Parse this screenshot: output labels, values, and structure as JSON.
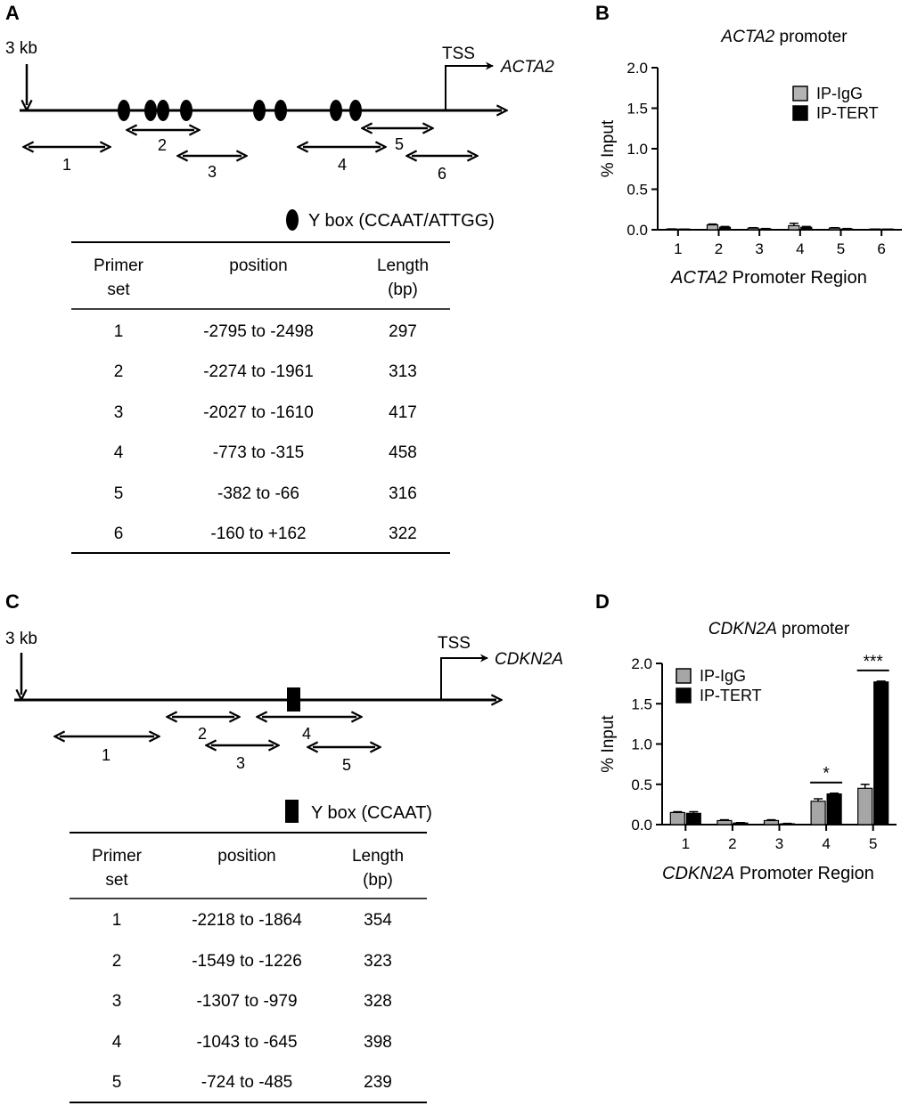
{
  "panels": {
    "A": {
      "label": "A",
      "start_label": "3 kb",
      "tss_label": "TSS",
      "gene": "ACTA2",
      "legend_label": "Y box (CCAAT/ATTGG)",
      "primer_labels": [
        "1",
        "2",
        "3",
        "4",
        "5",
        "6"
      ],
      "table": {
        "headers": [
          [
            "Primer",
            "set"
          ],
          [
            "position"
          ],
          [
            "Length",
            "(bp)"
          ]
        ],
        "rows": [
          [
            "1",
            "-2795 to -2498",
            "297"
          ],
          [
            "2",
            "-2274 to -1961",
            "313"
          ],
          [
            "3",
            "-2027 to -1610",
            "417"
          ],
          [
            "4",
            "-773 to -315",
            "458"
          ],
          [
            "5",
            "-382 to -66",
            "316"
          ],
          [
            "6",
            "-160 to +162",
            "322"
          ]
        ]
      }
    },
    "C": {
      "label": "C",
      "start_label": "3 kb",
      "tss_label": "TSS",
      "gene": "CDKN2A",
      "legend_label": "Y box (CCAAT)",
      "primer_labels": [
        "1",
        "2",
        "3",
        "4",
        "5"
      ],
      "table": {
        "headers": [
          [
            "Primer",
            "set"
          ],
          [
            "position"
          ],
          [
            "Length",
            "(bp)"
          ]
        ],
        "rows": [
          [
            "1",
            "-2218 to -1864",
            "354"
          ],
          [
            "2",
            "-1549 to -1226",
            "323"
          ],
          [
            "3",
            "-1307 to -979",
            "328"
          ],
          [
            "4",
            "-1043 to -645",
            "398"
          ],
          [
            "5",
            "-724 to -485",
            "239"
          ]
        ]
      }
    },
    "B": {
      "label": "B"
    },
    "D": {
      "label": "D"
    }
  },
  "chart_data": [
    {
      "type": "bar",
      "panel": "B",
      "title_gene": "ACTA2",
      "title_rest": " promoter",
      "xlabel_gene": "ACTA2",
      "xlabel_rest": " Promoter Region",
      "ylabel": "% Input",
      "categories": [
        "1",
        "2",
        "3",
        "4",
        "5",
        "6"
      ],
      "ylim": [
        0,
        2.0
      ],
      "yticks": [
        "0.0",
        "0.5",
        "1.0",
        "1.5",
        "2.0"
      ],
      "series": [
        {
          "name": "IP-IgG",
          "color": "#b3b3b3",
          "values": [
            0.005,
            0.06,
            0.02,
            0.05,
            0.02,
            0.005
          ],
          "errors": [
            0.005,
            0.01,
            0.005,
            0.03,
            0.005,
            0.003
          ]
        },
        {
          "name": "IP-TERT",
          "color": "#000000",
          "values": [
            0.003,
            0.03,
            0.01,
            0.03,
            0.01,
            0.003
          ],
          "errors": [
            0.003,
            0.01,
            0.005,
            0.01,
            0.005,
            0.002
          ]
        }
      ],
      "significance": []
    },
    {
      "type": "bar",
      "panel": "D",
      "title_gene": "CDKN2A",
      "title_rest": " promoter",
      "xlabel_gene": "CDKN2A",
      "xlabel_rest": " Promoter Region",
      "ylabel": "% Input",
      "categories": [
        "1",
        "2",
        "3",
        "4",
        "5"
      ],
      "ylim": [
        0,
        2.0
      ],
      "yticks": [
        "0.0",
        "0.5",
        "1.0",
        "1.5",
        "2.0"
      ],
      "series": [
        {
          "name": "IP-IgG",
          "color": "#a6a6a6",
          "values": [
            0.15,
            0.05,
            0.05,
            0.29,
            0.45
          ],
          "errors": [
            0.01,
            0.01,
            0.01,
            0.03,
            0.05
          ]
        },
        {
          "name": "IP-TERT",
          "color": "#000000",
          "values": [
            0.14,
            0.02,
            0.01,
            0.38,
            1.77
          ],
          "errors": [
            0.02,
            0.005,
            0.005,
            0.01,
            0.01
          ]
        }
      ],
      "significance": [
        {
          "category": "4",
          "label": "*"
        },
        {
          "category": "5",
          "label": "***"
        }
      ]
    }
  ]
}
